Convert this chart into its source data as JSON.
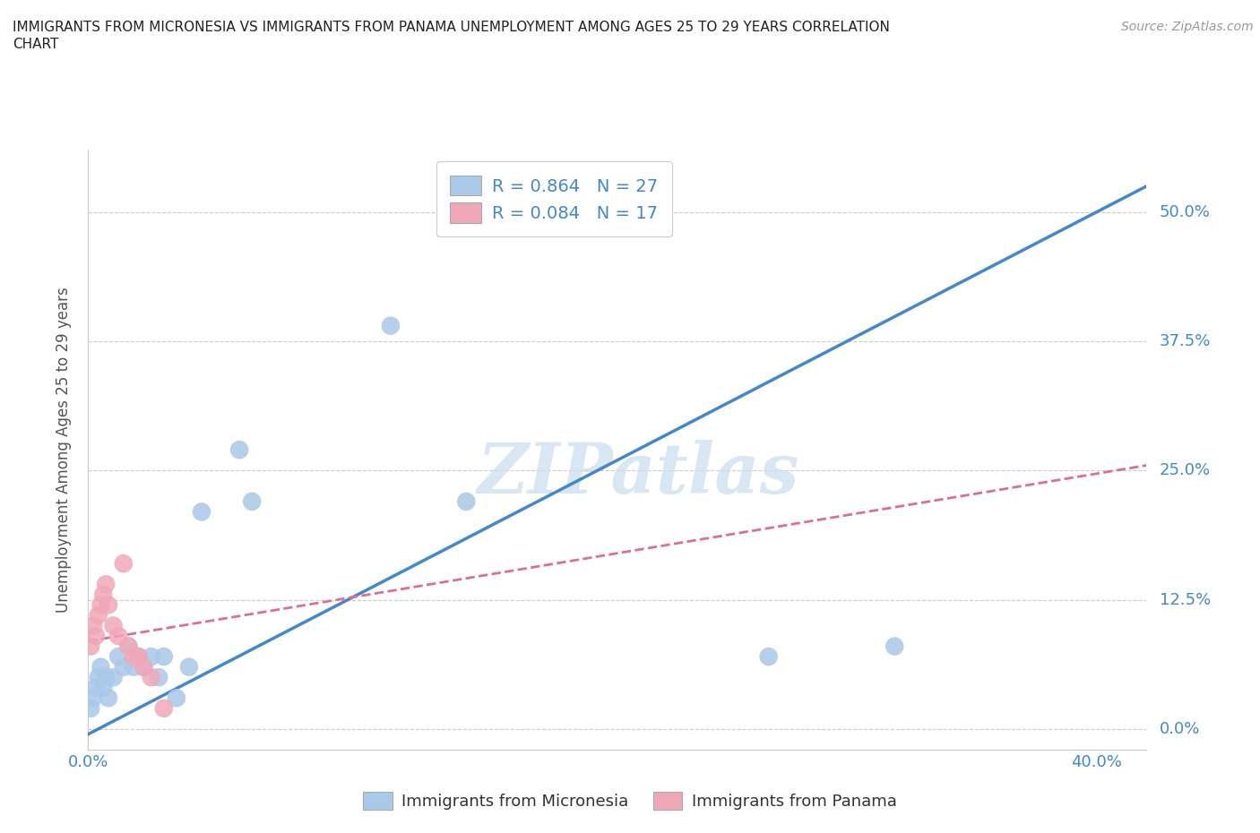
{
  "title_line1": "IMMIGRANTS FROM MICRONESIA VS IMMIGRANTS FROM PANAMA UNEMPLOYMENT AMONG AGES 25 TO 29 YEARS CORRELATION",
  "title_line2": "CHART",
  "source": "Source: ZipAtlas.com",
  "ylabel": "Unemployment Among Ages 25 to 29 years",
  "xlim": [
    0.0,
    0.42
  ],
  "ylim": [
    -0.02,
    0.56
  ],
  "yticks": [
    0.0,
    0.125,
    0.25,
    0.375,
    0.5
  ],
  "yticklabels": [
    "0.0%",
    "12.5%",
    "25.0%",
    "37.5%",
    "50.0%"
  ],
  "xticks": [
    0.0,
    0.1,
    0.2,
    0.3,
    0.4
  ],
  "xticklabels": [
    "0.0%",
    "",
    "",
    "",
    "40.0%"
  ],
  "micronesia_R": 0.864,
  "micronesia_N": 27,
  "panama_R": 0.084,
  "panama_N": 17,
  "micronesia_color": "#aac8e8",
  "panama_color": "#f0a8b8",
  "micronesia_line_color": "#4488cc",
  "panama_line_color": "#dd7090",
  "watermark": "ZIPatlas",
  "micronesia_x": [
    0.001,
    0.002,
    0.003,
    0.004,
    0.005,
    0.006,
    0.007,
    0.008,
    0.01,
    0.012,
    0.014,
    0.016,
    0.018,
    0.02,
    0.022,
    0.025,
    0.028,
    0.03,
    0.035,
    0.04,
    0.045,
    0.06,
    0.065,
    0.12,
    0.15,
    0.27,
    0.32
  ],
  "micronesia_y": [
    0.02,
    0.03,
    0.04,
    0.05,
    0.06,
    0.04,
    0.05,
    0.03,
    0.05,
    0.07,
    0.06,
    0.08,
    0.06,
    0.07,
    0.06,
    0.07,
    0.05,
    0.07,
    0.03,
    0.06,
    0.21,
    0.27,
    0.22,
    0.39,
    0.22,
    0.07,
    0.08
  ],
  "panama_x": [
    0.001,
    0.002,
    0.003,
    0.004,
    0.005,
    0.006,
    0.007,
    0.008,
    0.01,
    0.012,
    0.014,
    0.016,
    0.018,
    0.02,
    0.022,
    0.025,
    0.03
  ],
  "panama_y": [
    0.08,
    0.1,
    0.09,
    0.11,
    0.12,
    0.13,
    0.14,
    0.12,
    0.1,
    0.09,
    0.16,
    0.08,
    0.07,
    0.07,
    0.06,
    0.05,
    0.02
  ],
  "mic_line_x0": 0.0,
  "mic_line_y0": -0.005,
  "mic_line_x1": 0.42,
  "mic_line_y1": 0.525,
  "pan_line_x0": 0.0,
  "pan_line_y0": 0.085,
  "pan_line_x1": 0.42,
  "pan_line_y1": 0.255
}
